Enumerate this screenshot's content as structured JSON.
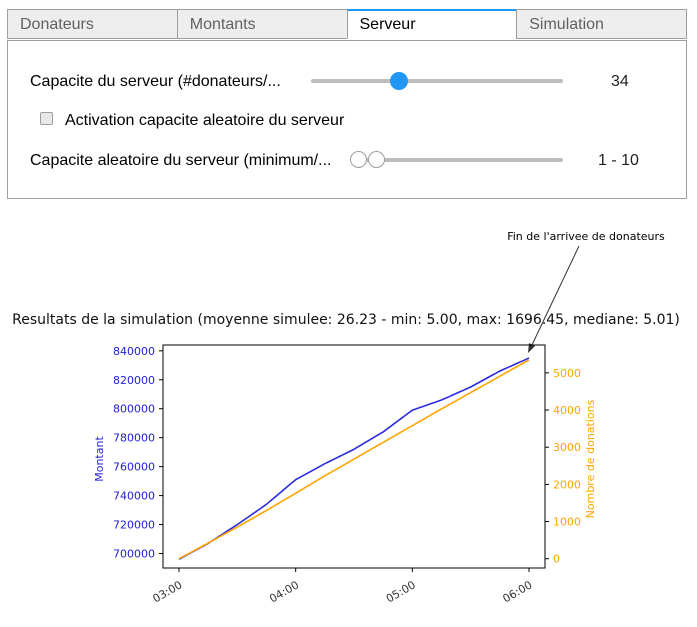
{
  "tabs": [
    {
      "label": "Donateurs",
      "active": false
    },
    {
      "label": "Montants",
      "active": false
    },
    {
      "label": "Serveur",
      "active": true
    },
    {
      "label": "Simulation",
      "active": false
    }
  ],
  "panel": {
    "capacity_label": "Capacite du serveur (#donateurs/...",
    "capacity_value": "34",
    "capacity_fraction": 0.35,
    "random_checkbox_label": "Activation capacite aleatoire du serveur",
    "random_checkbox_checked": false,
    "random_range_label": "Capacite aleatoire du serveur (minimum/...",
    "random_range_value": "1 - 10"
  },
  "chart_data": {
    "type": "line",
    "title": "Resultats de la simulation (moyenne simulee: 26.23 - min: 5.00, max: 1696.45, mediane: 5.01)",
    "annotation": "Fin de l'arrivee de donateurs",
    "x_ticks": [
      "03:00",
      "04:00",
      "05:00",
      "06:00"
    ],
    "x_range": [
      0,
      3
    ],
    "left_axis": {
      "label": "Montant",
      "ticks": [
        "700000",
        "720000",
        "740000",
        "760000",
        "780000",
        "800000",
        "820000",
        "840000"
      ],
      "range": [
        690000,
        844000
      ],
      "color": "#1f1fd6"
    },
    "right_axis": {
      "label": "Nombre de donations",
      "ticks": [
        "0",
        "1000",
        "2000",
        "3000",
        "4000",
        "5000"
      ],
      "range": [
        -250,
        5750
      ],
      "color": "#ffa500"
    },
    "series": [
      {
        "axis": "left",
        "color": "#2b2be0",
        "x": [
          0,
          0.25,
          0.5,
          0.75,
          1.0,
          1.25,
          1.5,
          1.75,
          2.0,
          2.25,
          2.5,
          2.75,
          3.0
        ],
        "y": [
          696000,
          707000,
          720000,
          734000,
          751000,
          762000,
          772000,
          784000,
          799000,
          806000,
          815000,
          826000,
          835000
        ]
      },
      {
        "axis": "right",
        "color": "#ffa500",
        "x": [
          0,
          0.25,
          0.5,
          0.75,
          1.0,
          1.25,
          1.5,
          1.75,
          2.0,
          2.25,
          2.5,
          2.75,
          3.0
        ],
        "y": [
          0,
          420,
          850,
          1300,
          1760,
          2230,
          2680,
          3130,
          3580,
          4030,
          4470,
          4910,
          5350
        ]
      }
    ]
  }
}
